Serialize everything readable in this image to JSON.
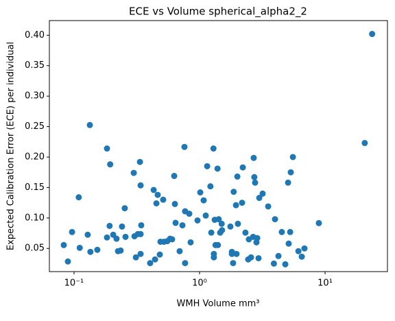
{
  "chart_data": {
    "type": "scatter",
    "title": "ECE vs Volume spherical_alpha2_2",
    "x_label": "WMH Volume mm³",
    "y_label": "Expected Calibration Error (ECE) per individual",
    "x_scale": "log",
    "color": "#1f77b4",
    "grid": false,
    "x": [
      0.0828,
      0.0893,
      0.0964,
      0.109,
      0.111,
      0.1285,
      0.1336,
      0.135,
      0.1533,
      0.183,
      0.183,
      0.192,
      0.194,
      0.205,
      0.218,
      0.224,
      0.235,
      0.241,
      0.2535,
      0.257,
      0.299,
      0.303,
      0.311,
      0.322,
      0.335,
      0.339,
      0.343,
      0.339,
      0.339,
      0.404,
      0.431,
      0.442,
      0.453,
      0.464,
      0.482,
      0.488,
      0.513,
      0.52,
      0.553,
      0.582,
      0.604,
      0.628,
      0.636,
      0.644,
      0.694,
      0.73,
      0.758,
      0.767,
      0.767,
      0.828,
      0.849,
      0.963,
      1.013,
      1.078,
      1.12,
      1.15,
      1.22,
      1.24,
      1.29,
      1.3,
      1.32,
      1.3,
      1.34,
      1.39,
      1.4,
      1.42,
      1.46,
      1.5,
      1.51,
      1.76,
      1.81,
      1.81,
      1.85,
      1.87,
      1.95,
      1.97,
      2.0,
      2.02,
      2.18,
      2.21,
      2.32,
      2.44,
      2.47,
      2.57,
      2.67,
      2.7,
      2.73,
      2.77,
      2.84,
      2.88,
      2.95,
      2.99,
      3.18,
      3.52,
      3.91,
      3.99,
      4.25,
      4.52,
      4.82,
      5.07,
      5.13,
      5.27,
      5.33,
      5.54,
      6.13,
      6.52,
      6.85,
      8.92,
      20.7,
      23.7
    ],
    "values": [
      0.0556,
      0.0286,
      0.077,
      0.134,
      0.051,
      0.0725,
      0.2526,
      0.0444,
      0.0478,
      0.214,
      0.068,
      0.087,
      0.188,
      0.0725,
      0.066,
      0.0455,
      0.0466,
      0.086,
      0.116,
      0.069,
      0.174,
      0.07,
      0.0354,
      0.0736,
      0.192,
      0.0736,
      0.088,
      0.1535,
      0.041,
      0.026,
      0.146,
      0.032,
      0.124,
      0.138,
      0.04,
      0.061,
      0.13,
      0.061,
      0.062,
      0.066,
      0.065,
      0.169,
      0.123,
      0.092,
      0.0455,
      0.088,
      0.2166,
      0.026,
      0.111,
      0.107,
      0.06,
      0.096,
      0.142,
      0.129,
      0.104,
      0.185,
      0.152,
      0.076,
      0.214,
      0.0354,
      0.097,
      0.041,
      0.0556,
      0.181,
      0.0556,
      0.098,
      0.076,
      0.0905,
      0.08,
      0.086,
      0.0444,
      0.041,
      0.026,
      0.143,
      0.121,
      0.041,
      0.168,
      0.0905,
      0.125,
      0.183,
      0.076,
      0.032,
      0.065,
      0.0354,
      0.069,
      0.1986,
      0.167,
      0.158,
      0.06,
      0.067,
      0.034,
      0.133,
      0.14,
      0.119,
      0.0252,
      0.098,
      0.0376,
      0.077,
      0.024,
      0.158,
      0.058,
      0.077,
      0.175,
      0.2,
      0.0455,
      0.0365,
      0.05,
      0.0916,
      0.223,
      0.402
    ],
    "xlim": [
      0.0636,
      31.4
    ],
    "ylim": [
      0.012,
      0.424
    ],
    "xticks": [
      {
        "value": 0.1,
        "label": "10⁻¹"
      },
      {
        "value": 1,
        "label": "10⁰"
      },
      {
        "value": 10,
        "label": "10¹"
      }
    ],
    "yticks": [
      {
        "value": 0.05,
        "label": "0.05"
      },
      {
        "value": 0.1,
        "label": "0.10"
      },
      {
        "value": 0.15,
        "label": "0.15"
      },
      {
        "value": 0.2,
        "label": "0.20"
      },
      {
        "value": 0.25,
        "label": "0.25"
      },
      {
        "value": 0.3,
        "label": "0.30"
      },
      {
        "value": 0.35,
        "label": "0.35"
      },
      {
        "value": 0.4,
        "label": "0.40"
      }
    ]
  }
}
